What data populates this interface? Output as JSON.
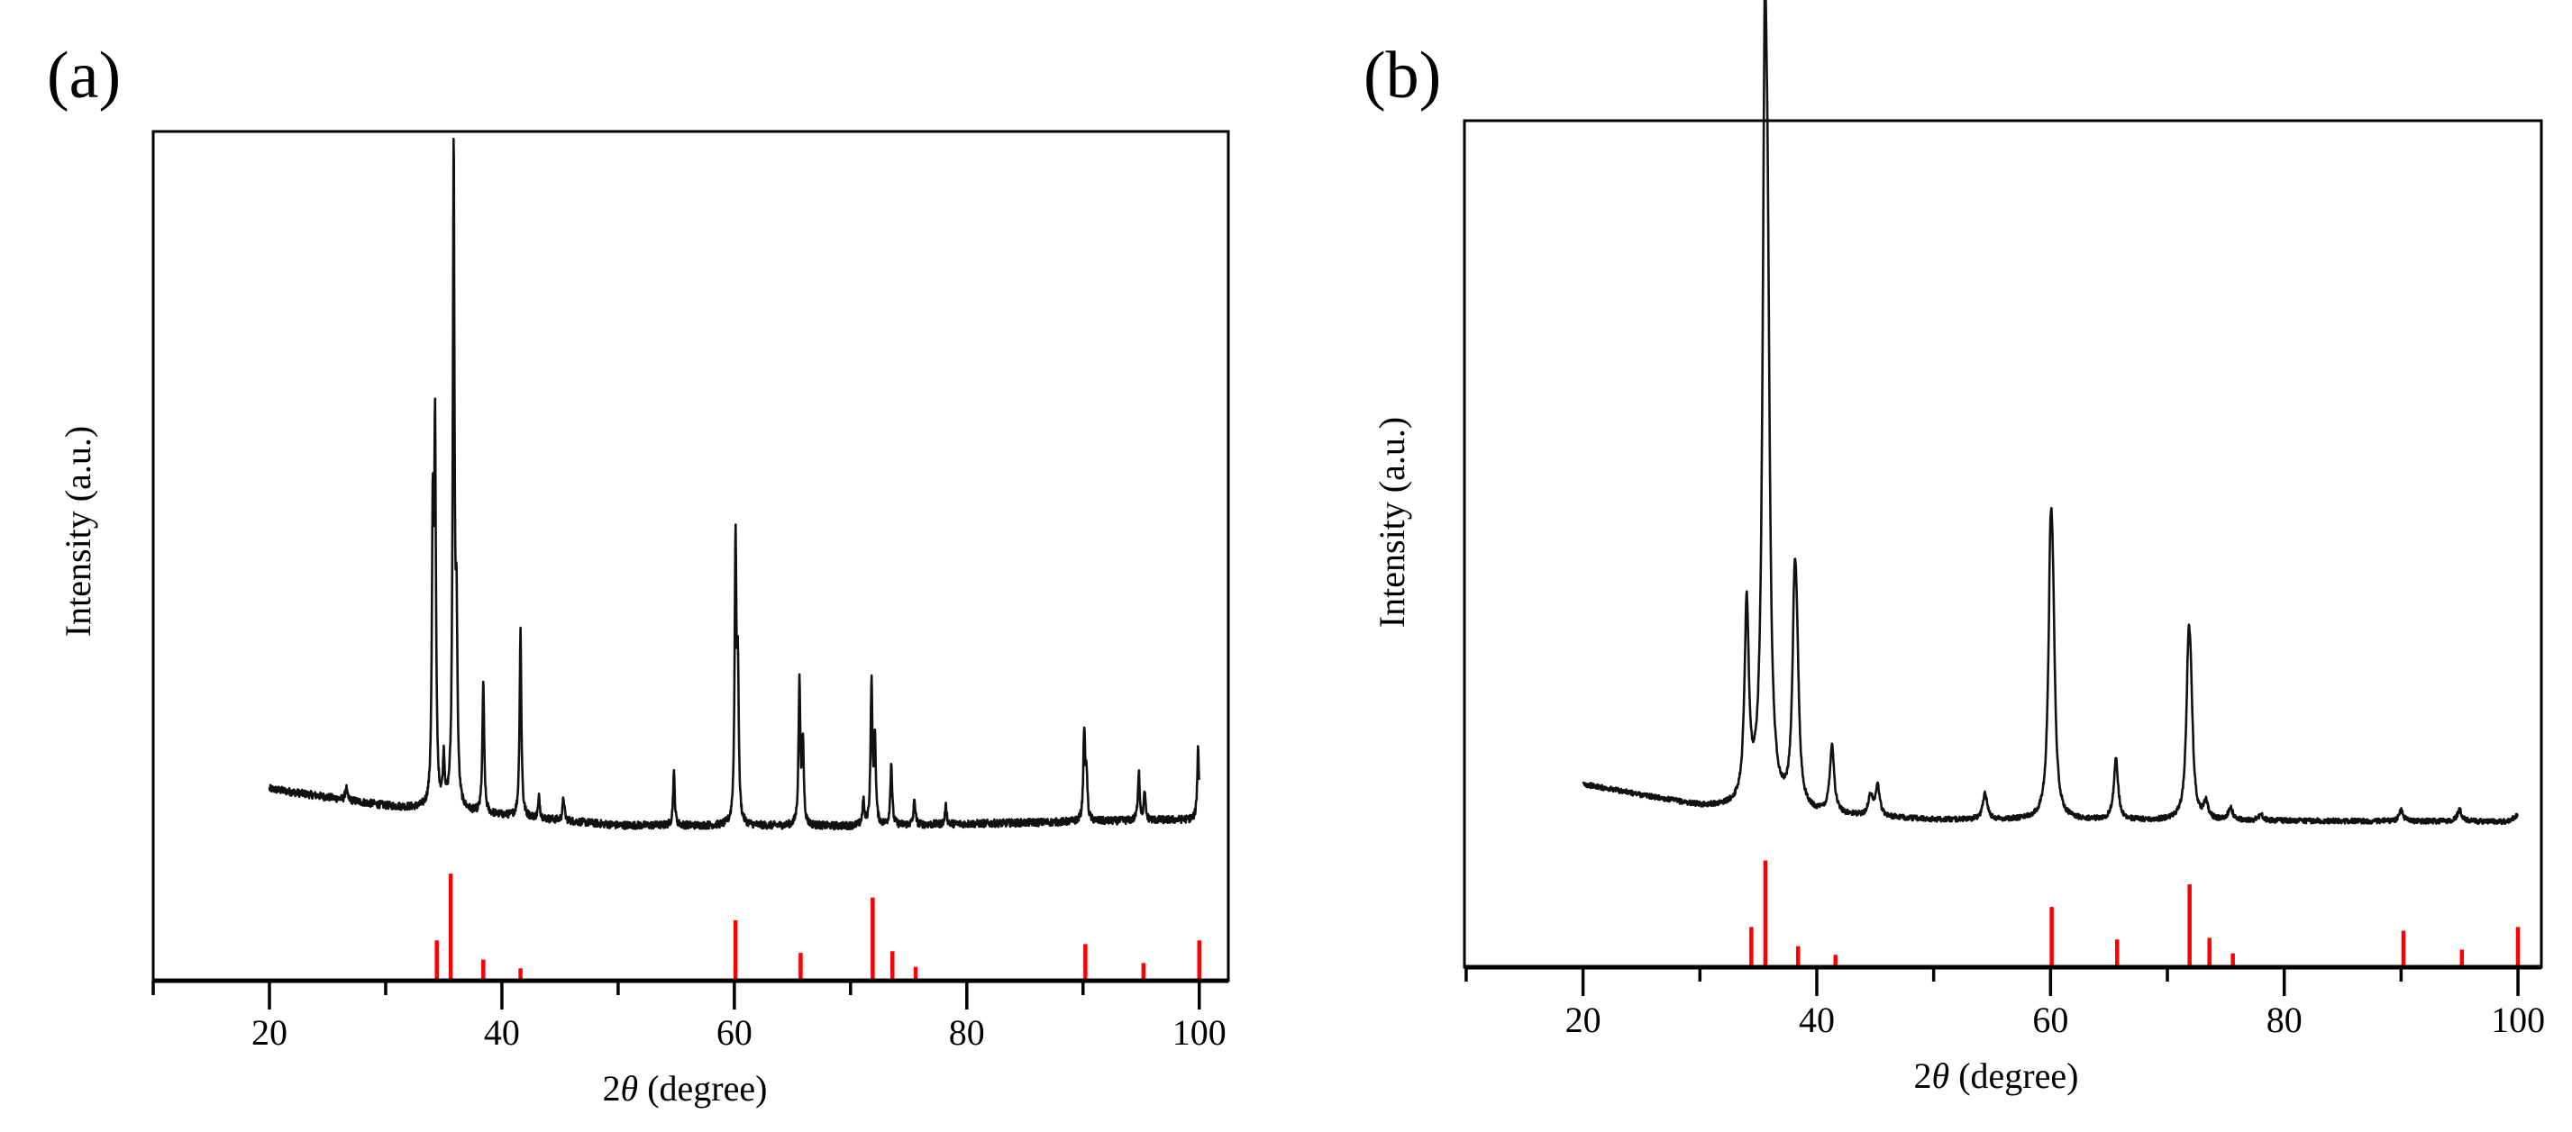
{
  "colors": {
    "trace": "#111111",
    "reference": "#ff0000",
    "axis": "#000000"
  },
  "chart_data": [
    {
      "type": "line",
      "panel_label": "(a)",
      "xlabel_parts": [
        "2",
        "θ",
        " (degree)"
      ],
      "ylabel": "Intensity (a.u.)",
      "xlim": [
        10,
        102.5
      ],
      "ylim": [
        0,
        100
      ],
      "y_units": "percent of axis height (arbitrary units)",
      "xticks_major": [
        20,
        40,
        60,
        80,
        100
      ],
      "xtick_labels": [
        "20",
        "40",
        "60",
        "80",
        "100"
      ],
      "xticks_minor": [
        10,
        30,
        50,
        70,
        90
      ],
      "grid": false,
      "measured": {
        "x_range": [
          20,
          100
        ],
        "baseline": [
          [
            20,
            22.6
          ],
          [
            30,
            20.6
          ],
          [
            50,
            18.3
          ],
          [
            70,
            18.2
          ],
          [
            100,
            19.0
          ]
        ],
        "peak_width": 0.09,
        "noise": 0.45,
        "peaks": [
          {
            "two_theta": 26.6,
            "intensity": 22.8
          },
          {
            "two_theta": 34.05,
            "intensity": 52
          },
          {
            "two_theta": 34.25,
            "intensity": 63
          },
          {
            "two_theta": 35.0,
            "intensity": 25.7
          },
          {
            "two_theta": 35.85,
            "intensity": 97.3
          },
          {
            "two_theta": 36.1,
            "intensity": 40
          },
          {
            "two_theta": 38.4,
            "intensity": 35.3
          },
          {
            "two_theta": 41.6,
            "intensity": 41.5
          },
          {
            "two_theta": 43.2,
            "intensity": 21.6
          },
          {
            "two_theta": 45.3,
            "intensity": 21.6
          },
          {
            "two_theta": 54.8,
            "intensity": 24.4
          },
          {
            "two_theta": 60.1,
            "intensity": 50.6
          },
          {
            "two_theta": 60.3,
            "intensity": 35
          },
          {
            "two_theta": 65.6,
            "intensity": 34.9
          },
          {
            "two_theta": 65.9,
            "intensity": 28
          },
          {
            "two_theta": 71.1,
            "intensity": 21
          },
          {
            "two_theta": 71.8,
            "intensity": 34.9
          },
          {
            "two_theta": 72.1,
            "intensity": 28
          },
          {
            "two_theta": 73.5,
            "intensity": 25.7
          },
          {
            "two_theta": 75.5,
            "intensity": 21.3
          },
          {
            "two_theta": 78.2,
            "intensity": 20.5
          },
          {
            "two_theta": 90.1,
            "intensity": 29.3
          },
          {
            "two_theta": 90.3,
            "intensity": 24
          },
          {
            "two_theta": 94.8,
            "intensity": 24.8
          },
          {
            "two_theta": 95.3,
            "intensity": 22
          },
          {
            "two_theta": 99.9,
            "intensity": 27.5
          }
        ]
      },
      "reference": {
        "max_height": 12.6,
        "lines": [
          {
            "two_theta": 34.4,
            "relative_intensity": 37.7
          },
          {
            "two_theta": 35.6,
            "relative_intensity": 100
          },
          {
            "two_theta": 38.4,
            "relative_intensity": 19.7
          },
          {
            "two_theta": 41.6,
            "relative_intensity": 11.6
          },
          {
            "two_theta": 60.1,
            "relative_intensity": 56.5
          },
          {
            "two_theta": 65.7,
            "relative_intensity": 26
          },
          {
            "two_theta": 71.9,
            "relative_intensity": 77.7
          },
          {
            "two_theta": 73.6,
            "relative_intensity": 27.5
          },
          {
            "two_theta": 75.6,
            "relative_intensity": 13
          },
          {
            "two_theta": 90.2,
            "relative_intensity": 34.2
          },
          {
            "two_theta": 95.2,
            "relative_intensity": 16.5
          },
          {
            "two_theta": 100.0,
            "relative_intensity": 37.7
          }
        ]
      }
    },
    {
      "type": "line",
      "panel_label": "(b)",
      "xlabel_parts": [
        "2",
        "θ",
        " (degree)"
      ],
      "ylabel": "Intensity (a.u.)",
      "xlim": [
        9.85,
        102
      ],
      "ylim": [
        0,
        100
      ],
      "y_units": "percent of axis height (arbitrary units)",
      "xticks_major": [
        20,
        40,
        60,
        80,
        100
      ],
      "xtick_labels": [
        "20",
        "40",
        "60",
        "80",
        "100"
      ],
      "xticks_minor": [
        10,
        30,
        50,
        70,
        90
      ],
      "grid": false,
      "measured": {
        "x_range": [
          20,
          100
        ],
        "baseline": [
          [
            20,
            21.6
          ],
          [
            30,
            19.0
          ],
          [
            40,
            18.0
          ],
          [
            50,
            17.4
          ],
          [
            99,
            17.2
          ],
          [
            100,
            17.9
          ]
        ],
        "peak_width": 0.22,
        "noise": 0.3,
        "peaks": [
          {
            "two_theta": 34.0,
            "intensity": 42
          },
          {
            "two_theta": 35.55,
            "intensity": 96
          },
          {
            "two_theta": 35.8,
            "intensity": 62
          },
          {
            "two_theta": 38.1,
            "intensity": 40.3
          },
          {
            "two_theta": 38.3,
            "intensity": 30
          },
          {
            "two_theta": 41.3,
            "intensity": 26
          },
          {
            "two_theta": 44.6,
            "intensity": 20
          },
          {
            "two_theta": 45.2,
            "intensity": 21.3
          },
          {
            "two_theta": 54.4,
            "intensity": 20.6
          },
          {
            "two_theta": 60.0,
            "intensity": 43.4
          },
          {
            "two_theta": 60.2,
            "intensity": 35
          },
          {
            "two_theta": 65.6,
            "intensity": 24.5
          },
          {
            "two_theta": 71.8,
            "intensity": 33.7
          },
          {
            "two_theta": 72.0,
            "intensity": 28
          },
          {
            "two_theta": 73.3,
            "intensity": 19.2
          },
          {
            "two_theta": 75.4,
            "intensity": 18.8
          },
          {
            "two_theta": 78.0,
            "intensity": 18
          },
          {
            "two_theta": 90.0,
            "intensity": 18.5
          },
          {
            "two_theta": 95.0,
            "intensity": 18.6
          }
        ]
      },
      "reference": {
        "max_height": 12.6,
        "lines": [
          {
            "two_theta": 34.4,
            "relative_intensity": 37.7
          },
          {
            "two_theta": 35.6,
            "relative_intensity": 100
          },
          {
            "two_theta": 38.4,
            "relative_intensity": 19.7
          },
          {
            "two_theta": 41.6,
            "relative_intensity": 11.6
          },
          {
            "two_theta": 60.1,
            "relative_intensity": 56.5
          },
          {
            "two_theta": 65.7,
            "relative_intensity": 26
          },
          {
            "two_theta": 71.9,
            "relative_intensity": 77.7
          },
          {
            "two_theta": 73.6,
            "relative_intensity": 27.5
          },
          {
            "two_theta": 75.6,
            "relative_intensity": 13
          },
          {
            "two_theta": 90.2,
            "relative_intensity": 34.2
          },
          {
            "two_theta": 95.2,
            "relative_intensity": 16.5
          },
          {
            "two_theta": 100.0,
            "relative_intensity": 37.7
          }
        ]
      }
    }
  ]
}
